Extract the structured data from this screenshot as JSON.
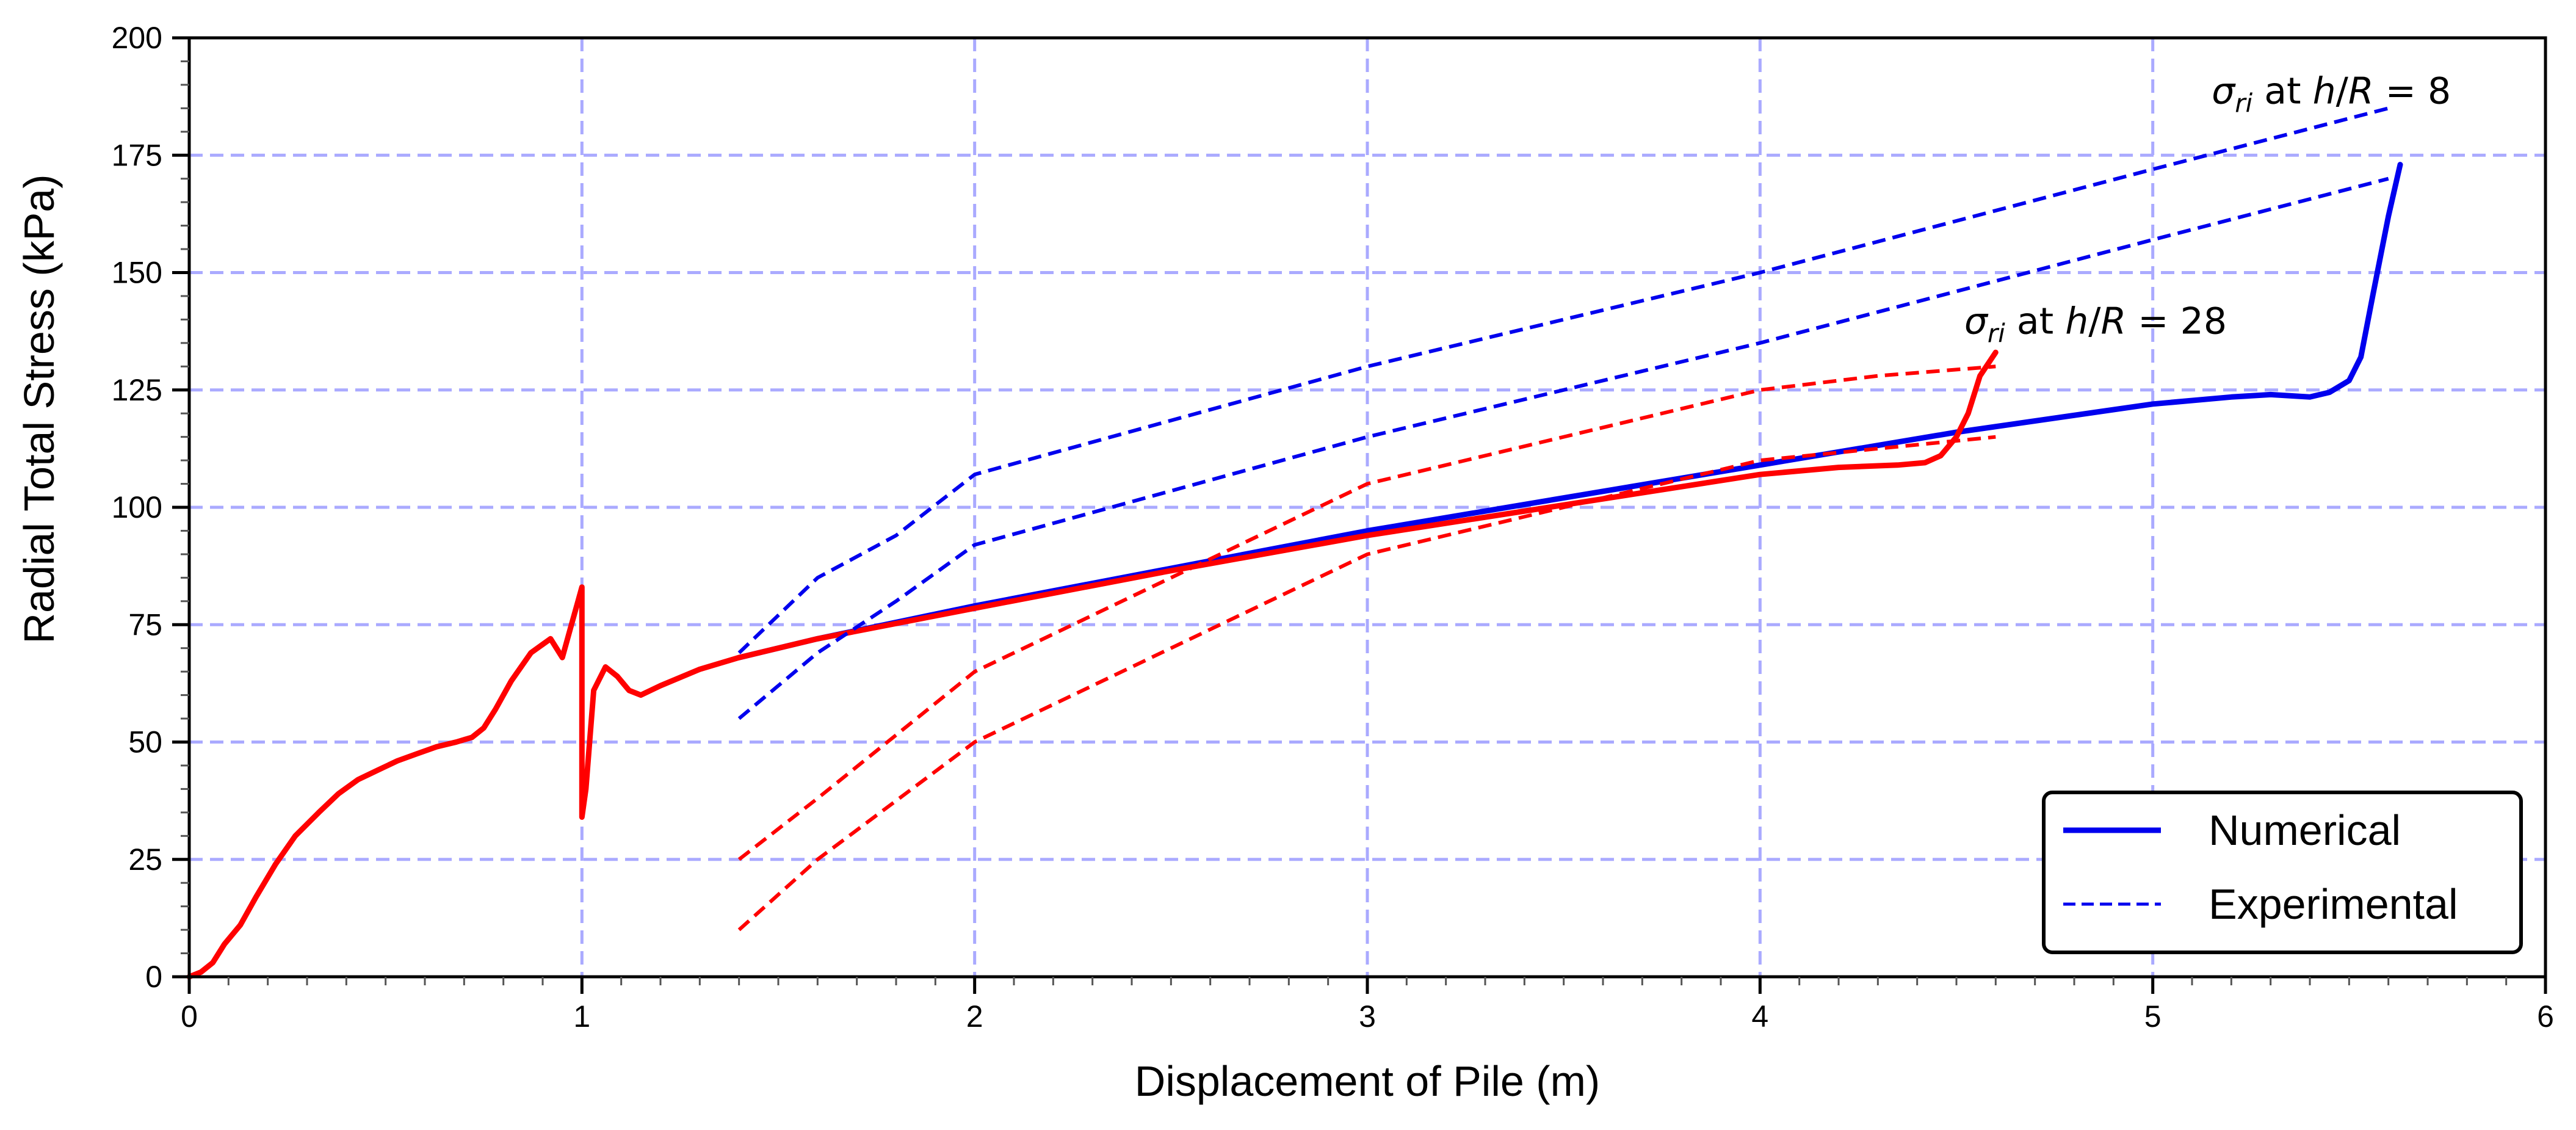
{
  "chart_data": {
    "type": "line",
    "title": "",
    "xlabel": "Displacement of Pile (m)",
    "ylabel": "Radial Total Stress (kPa)",
    "xlim": [
      0,
      6
    ],
    "ylim": [
      0,
      200
    ],
    "xticks": [
      0,
      1,
      2,
      3,
      4,
      5,
      6
    ],
    "yticks": [
      0,
      25,
      50,
      75,
      100,
      125,
      150,
      175,
      200
    ],
    "grid": true,
    "legend_position": "bottom-right",
    "legend": [
      {
        "label": "Numerical",
        "style": "solid"
      },
      {
        "label": "Experimental",
        "style": "dashed"
      }
    ],
    "annotations": [
      {
        "sigma": "σ",
        "sub": "ri",
        "mid": " at ",
        "h": "h",
        "slash": "/",
        "r": "R",
        "eq": " = ",
        "value": "8",
        "x": 5.15,
        "y": 186
      },
      {
        "sigma": "σ",
        "sub": "ri",
        "mid": " at ",
        "h": "h",
        "slash": "/",
        "r": "R",
        "eq": " = ",
        "value": "28",
        "x": 4.52,
        "y": 137
      }
    ],
    "colors": {
      "blue": "#0000ee",
      "red": "#ff0000",
      "grid": "#aaaaff"
    },
    "series": [
      {
        "color": "#0000ee",
        "style": "solid",
        "x": [
          1.4,
          1.6,
          2.0,
          2.5,
          3.0,
          3.5,
          4.0,
          4.5,
          5.0,
          5.2,
          5.3,
          5.4,
          5.45,
          5.5,
          5.53,
          5.56,
          5.6,
          5.63
        ],
        "y": [
          68,
          72,
          79,
          87,
          95,
          102,
          109,
          116,
          122,
          123.5,
          124,
          123.5,
          124.5,
          127,
          132,
          145,
          162,
          173
        ]
      },
      {
        "color": "#ff0000",
        "style": "solid",
        "x": [
          0,
          0.03,
          0.06,
          0.09,
          0.13,
          0.17,
          0.22,
          0.27,
          0.33,
          0.38,
          0.43,
          0.48,
          0.53,
          0.58,
          0.63,
          0.68,
          0.72,
          0.75,
          0.78,
          0.82,
          0.87,
          0.92,
          0.95,
          0.97,
          0.99,
          1.0,
          1.0,
          1.01,
          1.03,
          1.06,
          1.09,
          1.12,
          1.15,
          1.2,
          1.3,
          1.4,
          1.6,
          2.0,
          2.5,
          3.0,
          3.5,
          4.0,
          4.2,
          4.35,
          4.42,
          4.46,
          4.5,
          4.53,
          4.56,
          4.6
        ],
        "y": [
          0,
          1,
          3,
          7,
          11,
          17,
          24,
          30,
          35,
          39,
          42,
          44,
          46,
          47.5,
          49,
          50,
          51,
          53,
          57,
          63,
          69,
          72,
          68,
          74,
          80,
          83,
          34,
          40,
          61,
          66,
          64,
          61,
          60,
          62,
          65.5,
          68,
          72,
          78.5,
          86.5,
          94,
          100.5,
          107,
          108.5,
          109,
          109.5,
          111,
          115,
          120,
          128,
          133
        ]
      },
      {
        "color": "#0000ee",
        "style": "dashed",
        "x": [
          1.4,
          1.6,
          1.8,
          2.0,
          3.0,
          4.0,
          5.0,
          5.6
        ],
        "y": [
          69,
          85,
          94,
          107,
          130,
          150,
          172,
          185
        ]
      },
      {
        "color": "#0000ee",
        "style": "dashed",
        "x": [
          1.4,
          1.6,
          1.8,
          2.0,
          3.0,
          4.0,
          5.0,
          5.6
        ],
        "y": [
          55,
          69,
          80,
          92,
          115,
          135,
          157,
          170
        ]
      },
      {
        "color": "#ff0000",
        "style": "dashed",
        "x": [
          1.4,
          1.6,
          2.0,
          3.0,
          4.0,
          4.3,
          4.6
        ],
        "y": [
          25,
          38,
          65,
          105,
          125,
          128,
          130
        ]
      },
      {
        "color": "#ff0000",
        "style": "dashed",
        "x": [
          1.4,
          1.6,
          2.0,
          3.0,
          4.0,
          4.6
        ],
        "y": [
          10,
          25,
          50,
          90,
          110,
          115
        ]
      }
    ]
  }
}
